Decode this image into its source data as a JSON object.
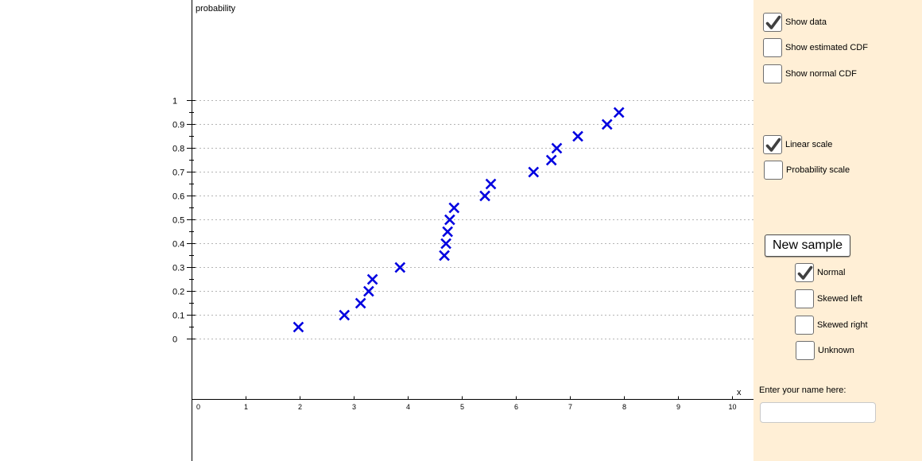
{
  "chart_data": {
    "type": "scatter",
    "ylabel": "probability",
    "xlabel": "x",
    "xlim": [
      0,
      10
    ],
    "ylim": [
      0,
      1
    ],
    "x_ticks": [
      "0",
      "1",
      "2",
      "3",
      "4",
      "5",
      "6",
      "7",
      "8",
      "9",
      "10"
    ],
    "y_ticks": [
      "0",
      "0.1",
      "0.2",
      "0.3",
      "0.4",
      "0.5",
      "0.6",
      "0.7",
      "0.8",
      "0.9",
      "1"
    ],
    "y_grid": true,
    "marker": "x",
    "marker_color": "#0000e0",
    "series": [
      {
        "points": [
          {
            "x": 1.97,
            "y": 0.05
          },
          {
            "x": 2.82,
            "y": 0.1
          },
          {
            "x": 3.12,
            "y": 0.15
          },
          {
            "x": 3.27,
            "y": 0.2
          },
          {
            "x": 3.34,
            "y": 0.25
          },
          {
            "x": 3.85,
            "y": 0.3
          },
          {
            "x": 4.67,
            "y": 0.35
          },
          {
            "x": 4.7,
            "y": 0.4
          },
          {
            "x": 4.73,
            "y": 0.45
          },
          {
            "x": 4.77,
            "y": 0.5
          },
          {
            "x": 4.85,
            "y": 0.55
          },
          {
            "x": 5.42,
            "y": 0.6
          },
          {
            "x": 5.53,
            "y": 0.65
          },
          {
            "x": 6.32,
            "y": 0.7
          },
          {
            "x": 6.65,
            "y": 0.75
          },
          {
            "x": 6.75,
            "y": 0.8
          },
          {
            "x": 7.14,
            "y": 0.85
          },
          {
            "x": 7.68,
            "y": 0.9
          },
          {
            "x": 7.9,
            "y": 0.95
          }
        ]
      }
    ]
  },
  "controls": {
    "show_data": {
      "label": "Show data",
      "checked": true
    },
    "show_estimated_cdf": {
      "label": "Show estimated CDF",
      "checked": false
    },
    "show_normal_cdf": {
      "label": "Show normal CDF",
      "checked": false
    },
    "linear_scale": {
      "label": "Linear scale",
      "checked": true
    },
    "probability_scale": {
      "label": "Probability scale",
      "checked": false
    },
    "new_sample_label": "New sample",
    "distribution": {
      "normal": {
        "label": "Normal",
        "checked": true
      },
      "skewed_left": {
        "label": "Skewed left",
        "checked": false
      },
      "skewed_right": {
        "label": "Skewed right",
        "checked": false
      },
      "unknown": {
        "label": "Unknown",
        "checked": false
      }
    },
    "name_prompt": "Enter your name here:",
    "name_value": "",
    "name_placeholder": ""
  },
  "colors": {
    "panel_bg": "#ffefd6",
    "grid": "#b5b5b5",
    "checkmark": "#404040"
  }
}
